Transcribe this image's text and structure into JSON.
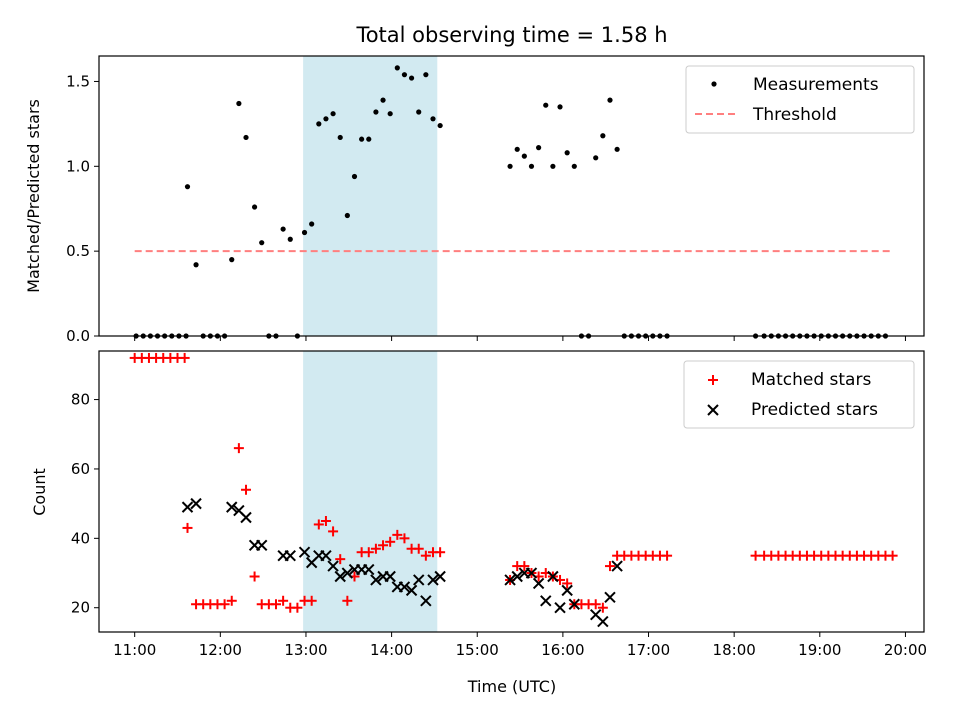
{
  "title": "Total observing time = 1.58 h",
  "xlabel": "Time (UTC)",
  "xticks": [
    "11:00",
    "12:00",
    "13:00",
    "14:00",
    "15:00",
    "16:00",
    "17:00",
    "18:00",
    "19:00",
    "20:00"
  ],
  "chart_data": [
    {
      "type": "scatter",
      "ylabel": "Matched/Predicted stars",
      "ylim": [
        0,
        1.65
      ],
      "yticks": [
        "0.0",
        "0.5",
        "1.0",
        "1.5"
      ],
      "xlim": [
        "10:35",
        "20:13"
      ],
      "shaded_span": [
        "12:58",
        "14:32"
      ],
      "shaded_color": "#add8e6",
      "legend": {
        "position": "upper right",
        "measurements": "Measurements",
        "threshold": "Threshold"
      },
      "threshold": {
        "value": 0.5,
        "x_range": [
          "11:00",
          "19:50"
        ],
        "color": "#ff7f7f"
      },
      "series": [
        {
          "name": "Measurements",
          "color": "#000000",
          "points": [
            [
              "11:01",
              0
            ],
            [
              "11:06",
              0
            ],
            [
              "11:11",
              0
            ],
            [
              "11:16",
              0
            ],
            [
              "11:21",
              0
            ],
            [
              "11:26",
              0
            ],
            [
              "11:31",
              0
            ],
            [
              "11:36",
              0
            ],
            [
              "11:37",
              0.88
            ],
            [
              "11:43",
              0.42
            ],
            [
              "11:48",
              0
            ],
            [
              "11:53",
              0
            ],
            [
              "11:58",
              0
            ],
            [
              "12:03",
              0
            ],
            [
              "12:08",
              0.45
            ],
            [
              "12:13",
              1.37
            ],
            [
              "12:18",
              1.17
            ],
            [
              "12:24",
              0.76
            ],
            [
              "12:29",
              0.55
            ],
            [
              "12:34",
              0
            ],
            [
              "12:39",
              0
            ],
            [
              "12:44",
              0.63
            ],
            [
              "12:49",
              0.57
            ],
            [
              "12:54",
              0
            ],
            [
              "12:59",
              0.61
            ],
            [
              "13:04",
              0.66
            ],
            [
              "13:09",
              1.25
            ],
            [
              "13:14",
              1.28
            ],
            [
              "13:19",
              1.31
            ],
            [
              "13:24",
              1.17
            ],
            [
              "13:29",
              0.71
            ],
            [
              "13:34",
              0.94
            ],
            [
              "13:39",
              1.16
            ],
            [
              "13:44",
              1.16
            ],
            [
              "13:49",
              1.32
            ],
            [
              "13:54",
              1.39
            ],
            [
              "13:59",
              1.31
            ],
            [
              "14:04",
              1.58
            ],
            [
              "14:09",
              1.54
            ],
            [
              "14:14",
              1.52
            ],
            [
              "14:19",
              1.32
            ],
            [
              "14:24",
              1.54
            ],
            [
              "14:29",
              1.28
            ],
            [
              "14:34",
              1.24
            ],
            [
              "15:23",
              1.0
            ],
            [
              "15:28",
              1.1
            ],
            [
              "15:33",
              1.06
            ],
            [
              "15:38",
              1.0
            ],
            [
              "15:43",
              1.11
            ],
            [
              "15:48",
              1.36
            ],
            [
              "15:53",
              1.0
            ],
            [
              "15:58",
              1.35
            ],
            [
              "16:03",
              1.08
            ],
            [
              "16:08",
              1.0
            ],
            [
              "16:13",
              0
            ],
            [
              "16:18",
              0
            ],
            [
              "16:23",
              1.05
            ],
            [
              "16:28",
              1.18
            ],
            [
              "16:33",
              1.39
            ],
            [
              "16:38",
              1.1
            ],
            [
              "16:43",
              0
            ],
            [
              "16:48",
              0
            ],
            [
              "16:53",
              0
            ],
            [
              "16:58",
              0
            ],
            [
              "17:03",
              0
            ],
            [
              "17:08",
              0
            ],
            [
              "17:13",
              0
            ],
            [
              "18:15",
              0
            ],
            [
              "18:21",
              0
            ],
            [
              "18:26",
              0
            ],
            [
              "18:31",
              0
            ],
            [
              "18:36",
              0
            ],
            [
              "18:41",
              0
            ],
            [
              "18:46",
              0
            ],
            [
              "18:51",
              0
            ],
            [
              "18:56",
              0
            ],
            [
              "19:01",
              0
            ],
            [
              "19:06",
              0
            ],
            [
              "19:11",
              0
            ],
            [
              "19:16",
              0
            ],
            [
              "19:21",
              0
            ],
            [
              "19:26",
              0
            ],
            [
              "19:31",
              0
            ],
            [
              "19:36",
              0
            ],
            [
              "19:41",
              0
            ],
            [
              "19:46",
              0
            ]
          ]
        }
      ]
    },
    {
      "type": "scatter",
      "ylabel": "Count",
      "ylim": [
        13,
        94
      ],
      "yticks": [
        "20",
        "40",
        "60",
        "80"
      ],
      "xlim": [
        "10:35",
        "20:13"
      ],
      "shaded_span": [
        "12:58",
        "14:32"
      ],
      "shaded_color": "#add8e6",
      "legend": {
        "position": "upper right",
        "matched": "Matched stars",
        "predicted": "Predicted stars"
      },
      "series": [
        {
          "name": "Matched stars",
          "color": "#ff0000",
          "marker": "+",
          "points": [
            [
              "11:00",
              92
            ],
            [
              "11:05",
              92
            ],
            [
              "11:10",
              92
            ],
            [
              "11:15",
              92
            ],
            [
              "11:20",
              92
            ],
            [
              "11:25",
              92
            ],
            [
              "11:30",
              92
            ],
            [
              "11:35",
              92
            ],
            [
              "11:37",
              43
            ],
            [
              "11:43",
              21
            ],
            [
              "11:48",
              21
            ],
            [
              "11:53",
              21
            ],
            [
              "11:58",
              21
            ],
            [
              "12:03",
              21
            ],
            [
              "12:08",
              22
            ],
            [
              "12:13",
              66
            ],
            [
              "12:18",
              54
            ],
            [
              "12:24",
              29
            ],
            [
              "12:29",
              21
            ],
            [
              "12:34",
              21
            ],
            [
              "12:39",
              21
            ],
            [
              "12:44",
              22
            ],
            [
              "12:49",
              20
            ],
            [
              "12:54",
              20
            ],
            [
              "12:59",
              22
            ],
            [
              "13:04",
              22
            ],
            [
              "13:09",
              44
            ],
            [
              "13:14",
              45
            ],
            [
              "13:19",
              42
            ],
            [
              "13:24",
              34
            ],
            [
              "13:29",
              22
            ],
            [
              "13:34",
              29
            ],
            [
              "13:39",
              36
            ],
            [
              "13:44",
              36
            ],
            [
              "13:49",
              37
            ],
            [
              "13:54",
              38
            ],
            [
              "13:59",
              39
            ],
            [
              "14:04",
              41
            ],
            [
              "14:09",
              40
            ],
            [
              "14:14",
              37
            ],
            [
              "14:19",
              37
            ],
            [
              "14:24",
              35
            ],
            [
              "14:29",
              36
            ],
            [
              "14:34",
              36
            ],
            [
              "15:23",
              28
            ],
            [
              "15:28",
              32
            ],
            [
              "15:33",
              32
            ],
            [
              "15:38",
              30
            ],
            [
              "15:43",
              29
            ],
            [
              "15:48",
              30
            ],
            [
              "15:53",
              29
            ],
            [
              "15:58",
              28
            ],
            [
              "16:03",
              27
            ],
            [
              "16:08",
              21
            ],
            [
              "16:13",
              21
            ],
            [
              "16:18",
              21
            ],
            [
              "16:23",
              21
            ],
            [
              "16:28",
              20
            ],
            [
              "16:33",
              32
            ],
            [
              "16:38",
              35
            ],
            [
              "16:43",
              35
            ],
            [
              "16:48",
              35
            ],
            [
              "16:53",
              35
            ],
            [
              "16:58",
              35
            ],
            [
              "17:03",
              35
            ],
            [
              "17:08",
              35
            ],
            [
              "17:13",
              35
            ],
            [
              "18:15",
              35
            ],
            [
              "18:21",
              35
            ],
            [
              "18:26",
              35
            ],
            [
              "18:31",
              35
            ],
            [
              "18:36",
              35
            ],
            [
              "18:41",
              35
            ],
            [
              "18:46",
              35
            ],
            [
              "18:51",
              35
            ],
            [
              "18:56",
              35
            ],
            [
              "19:01",
              35
            ],
            [
              "19:06",
              35
            ],
            [
              "19:11",
              35
            ],
            [
              "19:16",
              35
            ],
            [
              "19:21",
              35
            ],
            [
              "19:26",
              35
            ],
            [
              "19:31",
              35
            ],
            [
              "19:36",
              35
            ],
            [
              "19:41",
              35
            ],
            [
              "19:46",
              35
            ],
            [
              "19:51",
              35
            ]
          ]
        },
        {
          "name": "Predicted stars",
          "color": "#000000",
          "marker": "x",
          "points": [
            [
              "11:37",
              49
            ],
            [
              "11:43",
              50
            ],
            [
              "12:08",
              49
            ],
            [
              "12:13",
              48
            ],
            [
              "12:18",
              46
            ],
            [
              "12:24",
              38
            ],
            [
              "12:29",
              38
            ],
            [
              "12:44",
              35
            ],
            [
              "12:49",
              35
            ],
            [
              "12:59",
              36
            ],
            [
              "13:04",
              33
            ],
            [
              "13:09",
              35
            ],
            [
              "13:14",
              35
            ],
            [
              "13:19",
              32
            ],
            [
              "13:24",
              29
            ],
            [
              "13:29",
              30
            ],
            [
              "13:34",
              31
            ],
            [
              "13:39",
              31
            ],
            [
              "13:44",
              31
            ],
            [
              "13:49",
              28
            ],
            [
              "13:54",
              29
            ],
            [
              "13:59",
              29
            ],
            [
              "14:04",
              26
            ],
            [
              "14:09",
              26
            ],
            [
              "14:14",
              25
            ],
            [
              "14:19",
              28
            ],
            [
              "14:24",
              22
            ],
            [
              "14:29",
              28
            ],
            [
              "14:34",
              29
            ],
            [
              "15:23",
              28
            ],
            [
              "15:28",
              29
            ],
            [
              "15:33",
              30
            ],
            [
              "15:38",
              30
            ],
            [
              "15:43",
              27
            ],
            [
              "15:48",
              22
            ],
            [
              "15:53",
              29
            ],
            [
              "15:58",
              20
            ],
            [
              "16:03",
              25
            ],
            [
              "16:08",
              21
            ],
            [
              "16:23",
              18
            ],
            [
              "16:28",
              16
            ],
            [
              "16:33",
              23
            ],
            [
              "16:38",
              32
            ]
          ]
        }
      ]
    }
  ]
}
